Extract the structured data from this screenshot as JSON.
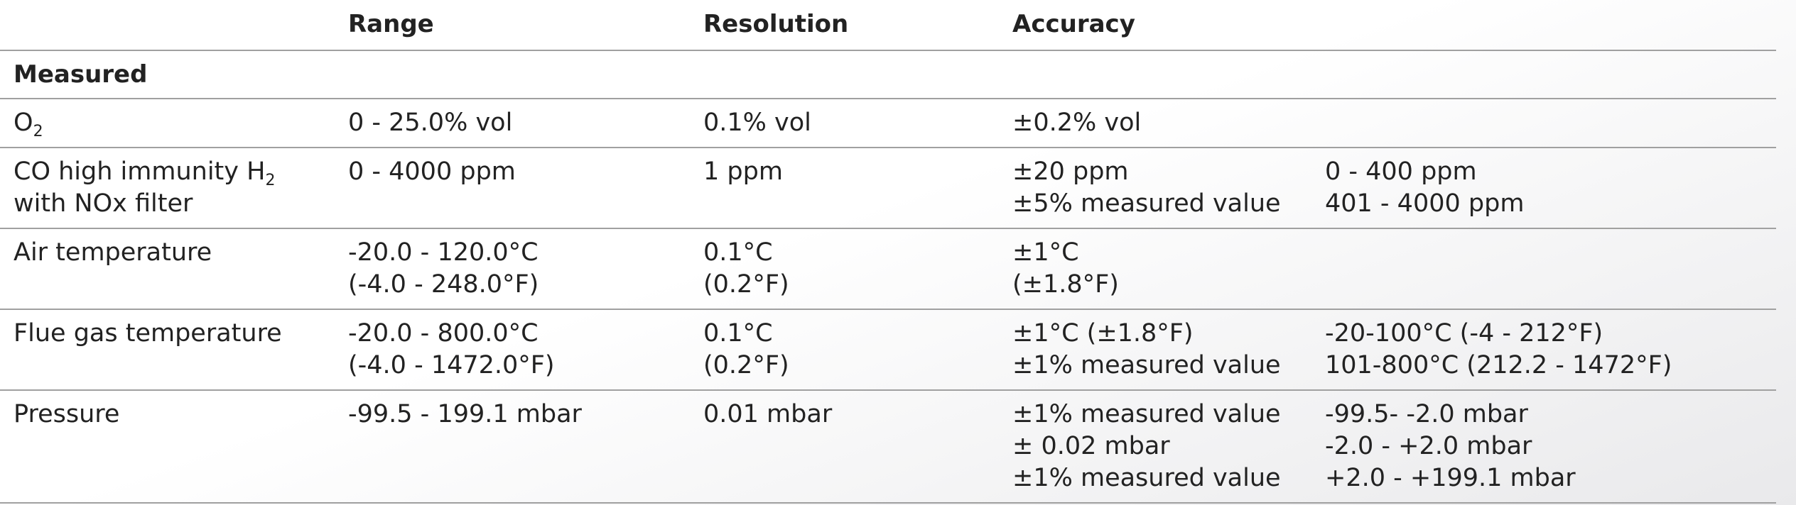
{
  "table": {
    "headers": [
      "Range",
      "Resolution",
      "Accuracy"
    ],
    "section": "Measured",
    "rows": [
      {
        "parameter": [
          {
            "text": "O",
            "sub": "2"
          }
        ],
        "range": [
          "0 - 25.0% vol"
        ],
        "resolution": [
          "0.1% vol"
        ],
        "accuracy": [
          "±0.2% vol"
        ],
        "condition": []
      },
      {
        "parameter": [
          {
            "text": "CO high immunity H",
            "sub": "2"
          },
          {
            "text": "with NOx filter"
          }
        ],
        "range": [
          "0 - 4000 ppm"
        ],
        "resolution": [
          "1 ppm"
        ],
        "accuracy": [
          "±20 ppm",
          "±5% measured value"
        ],
        "condition": [
          "0 - 400 ppm",
          "401 - 4000 ppm"
        ]
      },
      {
        "parameter": [
          {
            "text": "Air temperature"
          }
        ],
        "range": [
          "-20.0 - 120.0°C",
          "(-4.0 - 248.0°F)"
        ],
        "resolution": [
          "0.1°C",
          "(0.2°F)"
        ],
        "accuracy": [
          "±1°C",
          "(±1.8°F)"
        ],
        "condition": []
      },
      {
        "parameter": [
          {
            "text": "Flue gas temperature"
          }
        ],
        "range": [
          "-20.0 - 800.0°C",
          "(-4.0 - 1472.0°F)"
        ],
        "resolution": [
          "0.1°C",
          "(0.2°F)"
        ],
        "accuracy": [
          "±1°C  (±1.8°F)",
          "±1% measured value"
        ],
        "condition": [
          "-20-100°C  (-4 - 212°F)",
          "101-800°C  (212.2 - 1472°F)"
        ]
      },
      {
        "parameter": [
          {
            "text": "Pressure"
          }
        ],
        "range": [
          "-99.5 - 199.1 mbar"
        ],
        "resolution": [
          "0.01 mbar"
        ],
        "accuracy": [
          "±1% measured value",
          "± 0.02 mbar",
          "±1% measured value"
        ],
        "condition": [
          "-99.5- -2.0 mbar",
          "-2.0 - +2.0 mbar",
          "+2.0 - +199.1 mbar"
        ]
      }
    ]
  }
}
